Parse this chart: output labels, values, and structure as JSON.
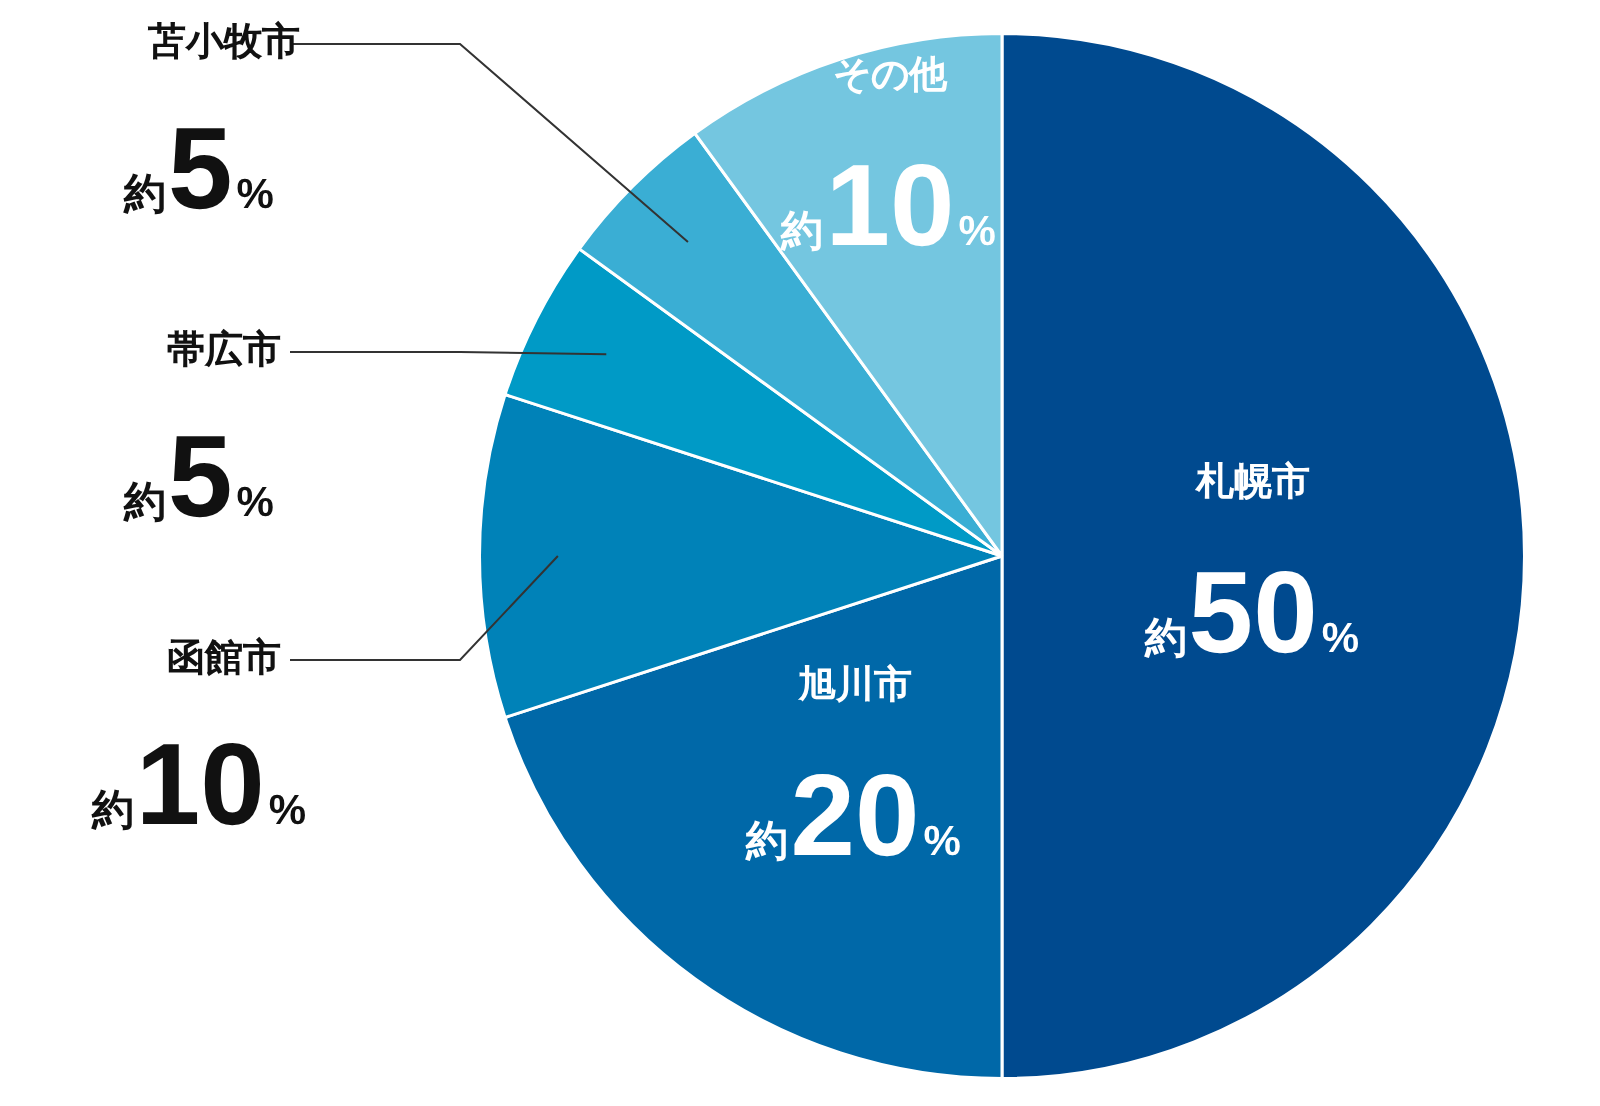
{
  "chart_data": {
    "type": "pie",
    "categories": [
      "札幌市",
      "旭川市",
      "函館市",
      "帯広市",
      "苫小牧市",
      "その他"
    ],
    "values": [
      50,
      20,
      10,
      5,
      5,
      10
    ],
    "colors": [
      "#004a8f",
      "#0068a8",
      "#0082b8",
      "#009ac6",
      "#3aaed4",
      "#74c6e0"
    ],
    "value_labels": [
      "約50%",
      "約20%",
      "約10%",
      "約5%",
      "約5%",
      "約10%"
    ],
    "legend": false
  }
}
